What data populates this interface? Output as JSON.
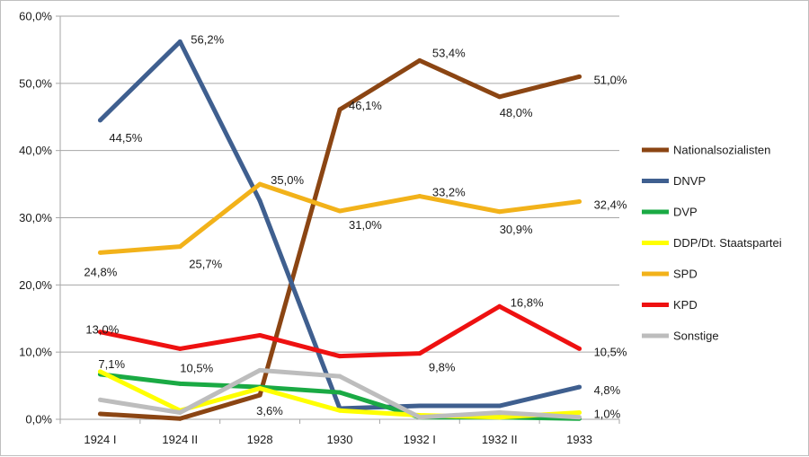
{
  "chart_data": {
    "type": "line",
    "title": "",
    "xlabel": "",
    "ylabel": "",
    "categories": [
      "1924 I",
      "1924 II",
      "1928",
      "1930",
      "1932 I",
      "1932 II",
      "1933"
    ],
    "ylim": [
      0,
      60
    ],
    "y_ticks": [
      "0,0%",
      "10,0%",
      "20,0%",
      "30,0%",
      "40,0%",
      "50,0%",
      "60,0%"
    ],
    "grid": true,
    "legend_position": "right",
    "series": [
      {
        "name": "Nationalsozialisten",
        "color": "#8b4513",
        "values": [
          0.8,
          0.1,
          3.6,
          46.1,
          53.4,
          48.0,
          51.0
        ],
        "labels": [
          "",
          "",
          "3,6%",
          "46,1%",
          "53,4%",
          "48,0%",
          "51,0%"
        ]
      },
      {
        "name": "DNVP",
        "color": "#3f5f8f",
        "values": [
          44.5,
          56.2,
          32.5,
          1.6,
          2.0,
          2.0,
          4.8
        ],
        "labels": [
          "44,5%",
          "56,2%",
          "",
          "",
          "",
          "",
          "4,8%"
        ]
      },
      {
        "name": "DVP",
        "color": "#1aaa44",
        "values": [
          6.7,
          5.3,
          4.8,
          4.0,
          0.3,
          0.3,
          0.1
        ],
        "labels": [
          "",
          "",
          "",
          "",
          "",
          "",
          ""
        ]
      },
      {
        "name": "DDP/Dt. Staatspartei",
        "color": "#ffff00",
        "values": [
          7.1,
          1.3,
          4.6,
          1.3,
          0.6,
          0.3,
          1.0
        ],
        "labels": [
          "7,1%",
          "",
          "",
          "",
          "",
          "",
          "1,0%"
        ]
      },
      {
        "name": "SPD",
        "color": "#f2b21a",
        "values": [
          24.8,
          25.7,
          35.0,
          31.0,
          33.2,
          30.9,
          32.4
        ],
        "labels": [
          "24,8%",
          "25,7%",
          "35,0%",
          "31,0%",
          "33,2%",
          "30,9%",
          "32,4%"
        ]
      },
      {
        "name": "KPD",
        "color": "#ee1111",
        "values": [
          13.0,
          10.5,
          12.5,
          9.4,
          9.8,
          16.8,
          10.5
        ],
        "labels": [
          "13,0%",
          "10,5%",
          "",
          "",
          "9,8%",
          "16,8%",
          "10,5%"
        ]
      },
      {
        "name": "Sonstige",
        "color": "#bdbdbd",
        "values": [
          2.9,
          1.0,
          7.3,
          6.4,
          0.3,
          1.0,
          0.3
        ],
        "labels": [
          "",
          "",
          "",
          "",
          "",
          "",
          ""
        ]
      }
    ]
  }
}
